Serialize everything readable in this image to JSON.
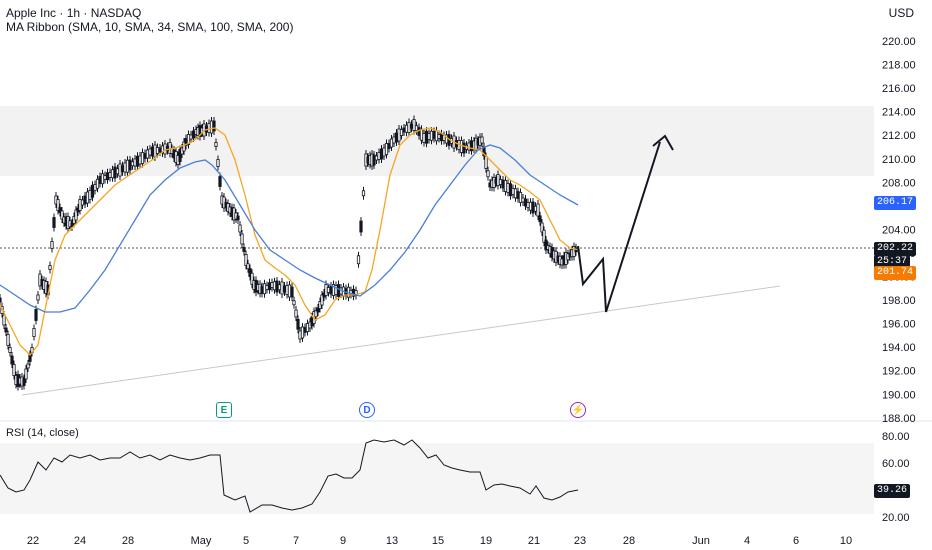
{
  "header": {
    "symbol_line": "Apple Inc · 1h · NASDAQ",
    "indicator_line": "MA Ribbon (SMA, 10, SMA, 34, SMA, 100, SMA, 200)",
    "currency": "USD"
  },
  "price_axis": {
    "ticks": [
      "220.00",
      "218.00",
      "216.00",
      "214.00",
      "212.00",
      "210.00",
      "208.00",
      "206.00",
      "204.00",
      "202.00",
      "200.00",
      "198.00",
      "196.00",
      "194.00",
      "192.00",
      "190.00",
      "188.00"
    ]
  },
  "price_badges": {
    "sma_blue": "206.17",
    "last_price": "202.22",
    "countdown": "25:37",
    "sma_orange": "201.74"
  },
  "time_axis": {
    "ticks": [
      "22",
      "24",
      "28",
      "May",
      "5",
      "7",
      "9",
      "13",
      "15",
      "19",
      "21",
      "23",
      "28",
      "Jun",
      "4",
      "6",
      "10"
    ]
  },
  "events": {
    "earnings": "E",
    "dividend": "D",
    "split": "⚡"
  },
  "rsi": {
    "title": "RSI (14, close)",
    "ticks": [
      "80.00",
      "60.00",
      "40.00",
      "20.00"
    ],
    "value": "39.26"
  },
  "colors": {
    "candle": "#131722",
    "sma_fast": "#f5a623",
    "sma_slow": "#4a7fd8",
    "blue_badge": "#2962ff",
    "orange_badge": "#f57c00",
    "earnings": "#089981",
    "dividend": "#2962ff",
    "split": "#9c27b0"
  }
}
